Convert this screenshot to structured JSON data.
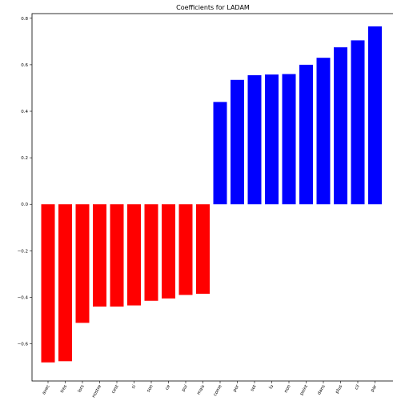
{
  "chart_data": {
    "type": "bar",
    "title": "Coefficients for LADAM",
    "xlabel": "",
    "ylabel": "",
    "ylim": [
      -0.76,
      0.82
    ],
    "yticks": [
      -0.6,
      -0.4,
      -0.2,
      0.0,
      0.2,
      0.4,
      0.6,
      0.8
    ],
    "ytick_labels": [
      "−0.6",
      "−0.4",
      "−0.2",
      "0.0",
      "0.2",
      "0.4",
      "0.6",
      "0.8"
    ],
    "grid": false,
    "colors": {
      "negative": "#ff0000",
      "positive": "#0000ff"
    },
    "categories": [
      "avec",
      "tres",
      "lors",
      "nostre",
      "cest",
      "si",
      "son",
      "ce",
      "pui",
      "mais",
      "come",
      "por",
      "sot",
      "lu",
      "non",
      "point",
      "dans",
      "plus",
      "cil",
      "par"
    ],
    "values": [
      -0.68,
      -0.675,
      -0.51,
      -0.44,
      -0.44,
      -0.435,
      -0.415,
      -0.405,
      -0.39,
      -0.385,
      0.44,
      0.535,
      0.555,
      0.558,
      0.56,
      0.6,
      0.63,
      0.675,
      0.705,
      0.765
    ]
  }
}
